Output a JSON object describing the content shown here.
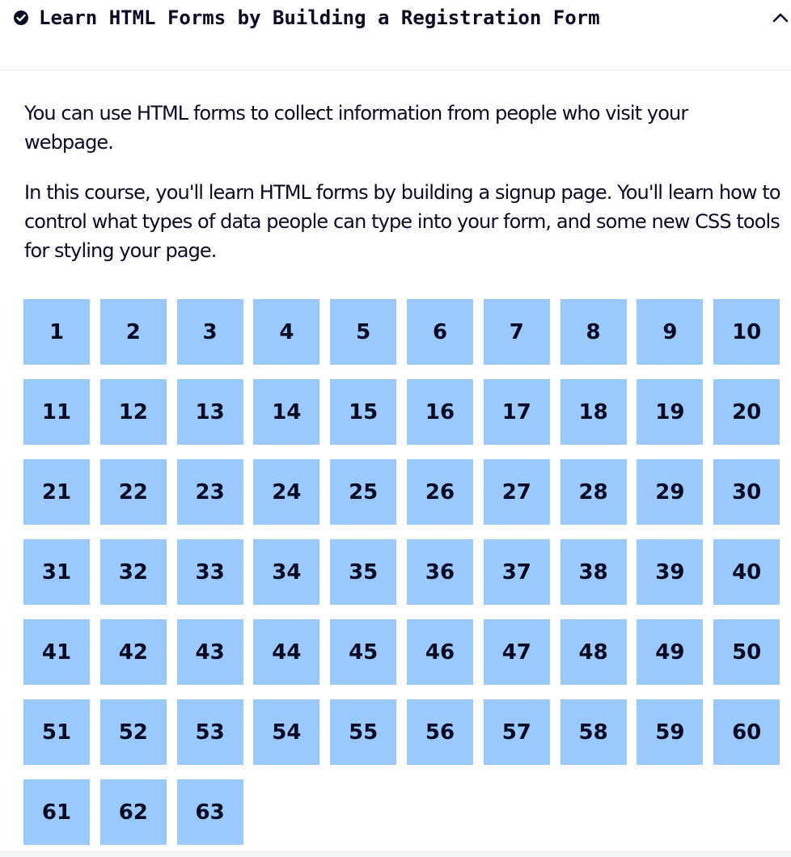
{
  "header": {
    "check_icon": "check-circle-icon",
    "title": "Learn HTML Forms by Building a Registration Form",
    "toggle_icon": "chevron-up-icon"
  },
  "description": {
    "paragraphs": [
      "You can use HTML forms to collect information from people who visit your webpage.",
      "In this course, you'll learn HTML forms by building a signup page. You'll learn how to control what types of data people can type into your form, and some new CSS tools for styling your page."
    ]
  },
  "steps": [
    "1",
    "2",
    "3",
    "4",
    "5",
    "6",
    "7",
    "8",
    "9",
    "10",
    "11",
    "12",
    "13",
    "14",
    "15",
    "16",
    "17",
    "18",
    "19",
    "20",
    "21",
    "22",
    "23",
    "24",
    "25",
    "26",
    "27",
    "28",
    "29",
    "30",
    "31",
    "32",
    "33",
    "34",
    "35",
    "36",
    "37",
    "38",
    "39",
    "40",
    "41",
    "42",
    "43",
    "44",
    "45",
    "46",
    "47",
    "48",
    "49",
    "50",
    "51",
    "52",
    "53",
    "54",
    "55",
    "56",
    "57",
    "58",
    "59",
    "60",
    "61",
    "62",
    "63"
  ],
  "colors": {
    "step_background": "#99c9ff",
    "text": "#0a0a23"
  }
}
